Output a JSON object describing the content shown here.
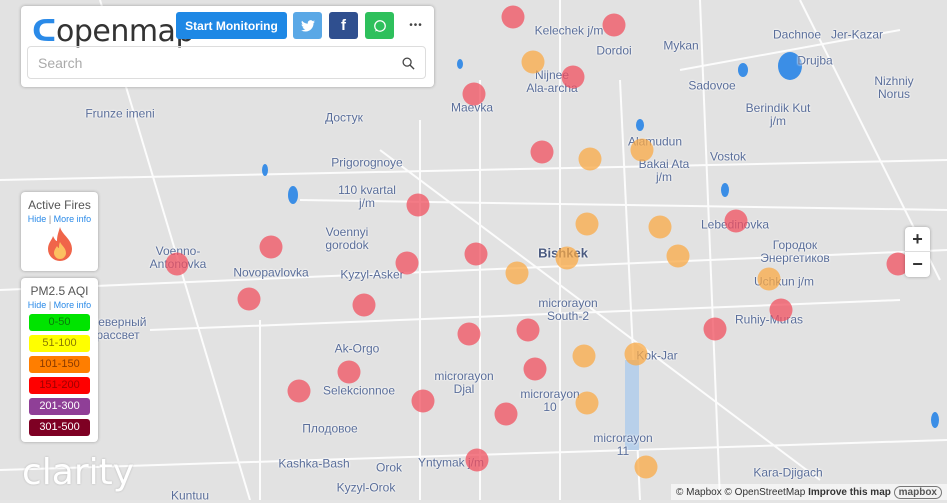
{
  "header": {
    "logo": "openmap",
    "start_monitoring": "Start Monitoring",
    "twitter_icon": "twitter-icon",
    "facebook_icon": "facebook-icon",
    "whatsapp_icon": "whatsapp-icon",
    "more": "•••",
    "search_placeholder": "Search"
  },
  "fires": {
    "title": "Active Fires",
    "hide": "Hide",
    "sep": "|",
    "more_info": "More info",
    "icon": "fire-icon"
  },
  "aqi": {
    "title": "PM2.5 AQI",
    "hide": "Hide",
    "sep": "|",
    "more_info": "More info",
    "legend": [
      {
        "label": "0-50",
        "color": "#00e400",
        "text": "#0a7a0a"
      },
      {
        "label": "51-100",
        "color": "#ffff00",
        "text": "#8a7a00"
      },
      {
        "label": "101-150",
        "color": "#ff7e00",
        "text": "#8a3a00"
      },
      {
        "label": "151-200",
        "color": "#ff0000",
        "text": "#a00000"
      },
      {
        "label": "201-300",
        "color": "#8f3f97",
        "text": "#ffffff"
      },
      {
        "label": "301-500",
        "color": "#7e0023",
        "text": "#ffffff"
      }
    ]
  },
  "zoom": {
    "in": "+",
    "out": "−"
  },
  "brand": "clarity",
  "attribution": {
    "mapbox": "© Mapbox",
    "osm": "© OpenStreetMap",
    "improve": "Improve this map",
    "logo": "mapbox"
  },
  "map_labels": [
    "Kelechek j/m",
    "Dordoi",
    "Mykan",
    "Dachnoe",
    "Jer-Kazar",
    "Nijnee Ala-archa",
    "Drujba",
    "Maevka",
    "Sadovoe",
    "Nizhniy Norus",
    "Frunze imeni",
    "Достук",
    "Berindik Kut j/m",
    "Alamudun",
    "Bakai Ata j/m",
    "Vostok",
    "Prigorognoye",
    "110 kvartal j/m",
    "Voennyi gorodok",
    "Lebedinovka",
    "Voenno-Antonovka",
    "Bishkek",
    "Городок Энергетиков",
    "Novopavlovka",
    "Kyzyl-Asker",
    "Uchkun j/m",
    "microrayon South-2",
    "Северный рассвет",
    "Ruhiy-Muras",
    "Ak-Orgo",
    "Kok-Jar",
    "Selekcionnoe",
    "microrayon Djal",
    "microrayon 10",
    "Плодовое",
    "microrayon 11",
    "Kashka-Bash",
    "Orok",
    "Yntymak j/m",
    "Kara-Djigach",
    "Kuntuu",
    "Kyzyl-Orok"
  ],
  "markers": {
    "red_count_colors": {
      "red": "#f0505f",
      "orange": "#faaa46"
    }
  }
}
